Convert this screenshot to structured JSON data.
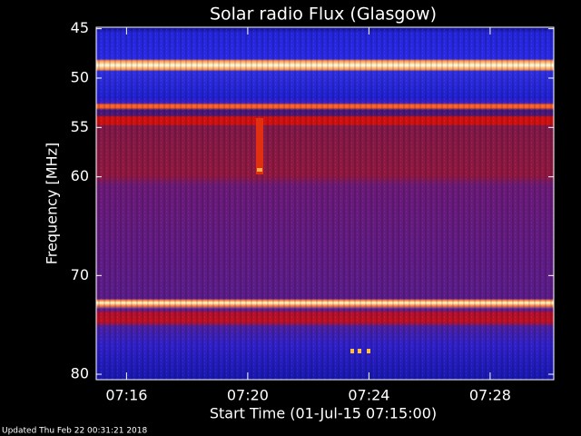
{
  "chart_data": {
    "type": "spectrogram",
    "title": "Solar radio Flux (Glasgow)",
    "xlabel": "Start Time (01-Jul-15 07:15:00)",
    "ylabel": "Frequency [MHz]",
    "footer": "Updated Thu Feb 22 00:31:21 2018",
    "xlim": [
      435,
      450.1
    ],
    "xticks": [
      {
        "value": 436,
        "label": "07:16"
      },
      {
        "value": 440,
        "label": "07:20"
      },
      {
        "value": 444,
        "label": "07:24"
      },
      {
        "value": 448,
        "label": "07:28"
      }
    ],
    "ylim": [
      44.85,
      80.55
    ],
    "yticks": [
      45,
      50,
      55,
      60,
      70,
      80
    ]
  }
}
